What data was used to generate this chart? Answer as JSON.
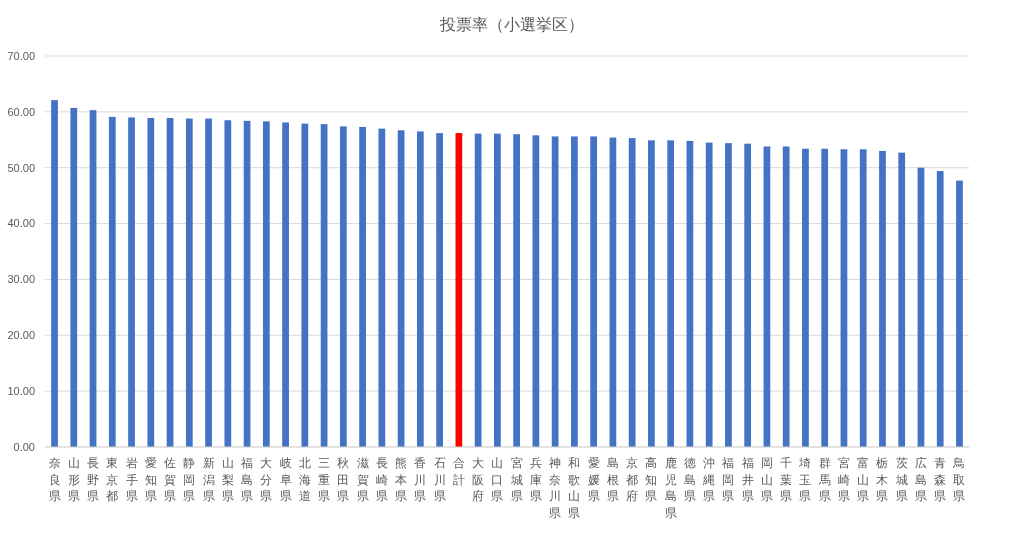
{
  "chart_data": {
    "type": "bar",
    "title": "投票率（小選挙区）",
    "categories": [
      "奈良県",
      "山形県",
      "長野県",
      "東京都",
      "岩手県",
      "愛知県",
      "佐賀県",
      "静岡県",
      "新潟県",
      "山梨県",
      "福島県",
      "大分県",
      "岐阜県",
      "北海道",
      "三重県",
      "秋田県",
      "滋賀県",
      "長崎県",
      "熊本県",
      "香川県",
      "石川県",
      "合計",
      "大阪府",
      "山口県",
      "宮城県",
      "兵庫県",
      "神奈川県",
      "和歌山県",
      "愛媛県",
      "島根県",
      "京都府",
      "高知県",
      "鹿児島県",
      "徳島県",
      "沖縄県",
      "福岡県",
      "福井県",
      "岡山県",
      "千葉県",
      "埼玉県",
      "群馬県",
      "宮崎県",
      "富山県",
      "栃木県",
      "茨城県",
      "広島県",
      "青森県",
      "鳥取県"
    ],
    "values": [
      62.1,
      60.7,
      60.3,
      59.1,
      59.0,
      58.9,
      58.9,
      58.8,
      58.8,
      58.5,
      58.4,
      58.3,
      58.1,
      57.9,
      57.8,
      57.4,
      57.3,
      57.0,
      56.7,
      56.5,
      56.2,
      56.2,
      56.1,
      56.1,
      56.0,
      55.8,
      55.6,
      55.6,
      55.6,
      55.4,
      55.3,
      54.9,
      54.9,
      54.8,
      54.5,
      54.4,
      54.3,
      53.8,
      53.8,
      53.4,
      53.4,
      53.3,
      53.3,
      53.0,
      52.7,
      50.0,
      49.4,
      47.7
    ],
    "colors": [
      "#4472c4",
      "#4472c4",
      "#4472c4",
      "#4472c4",
      "#4472c4",
      "#4472c4",
      "#4472c4",
      "#4472c4",
      "#4472c4",
      "#4472c4",
      "#4472c4",
      "#4472c4",
      "#4472c4",
      "#4472c4",
      "#4472c4",
      "#4472c4",
      "#4472c4",
      "#4472c4",
      "#4472c4",
      "#4472c4",
      "#4472c4",
      "#ff0000",
      "#4472c4",
      "#4472c4",
      "#4472c4",
      "#4472c4",
      "#4472c4",
      "#4472c4",
      "#4472c4",
      "#4472c4",
      "#4472c4",
      "#4472c4",
      "#4472c4",
      "#4472c4",
      "#4472c4",
      "#4472c4",
      "#4472c4",
      "#4472c4",
      "#4472c4",
      "#4472c4",
      "#4472c4",
      "#4472c4",
      "#4472c4",
      "#4472c4",
      "#4472c4",
      "#4472c4",
      "#4472c4",
      "#4472c4"
    ],
    "ylim": [
      0,
      70
    ],
    "yticks": [
      {
        "value": 0,
        "label": "0.00"
      },
      {
        "value": 10,
        "label": "10.00"
      },
      {
        "value": 20,
        "label": "20.00"
      },
      {
        "value": 30,
        "label": "30.00"
      },
      {
        "value": 40,
        "label": "40.00"
      },
      {
        "value": 50,
        "label": "50.00"
      },
      {
        "value": 60,
        "label": "60.00"
      },
      {
        "value": 70,
        "label": "70.00"
      }
    ],
    "grid": "y"
  }
}
